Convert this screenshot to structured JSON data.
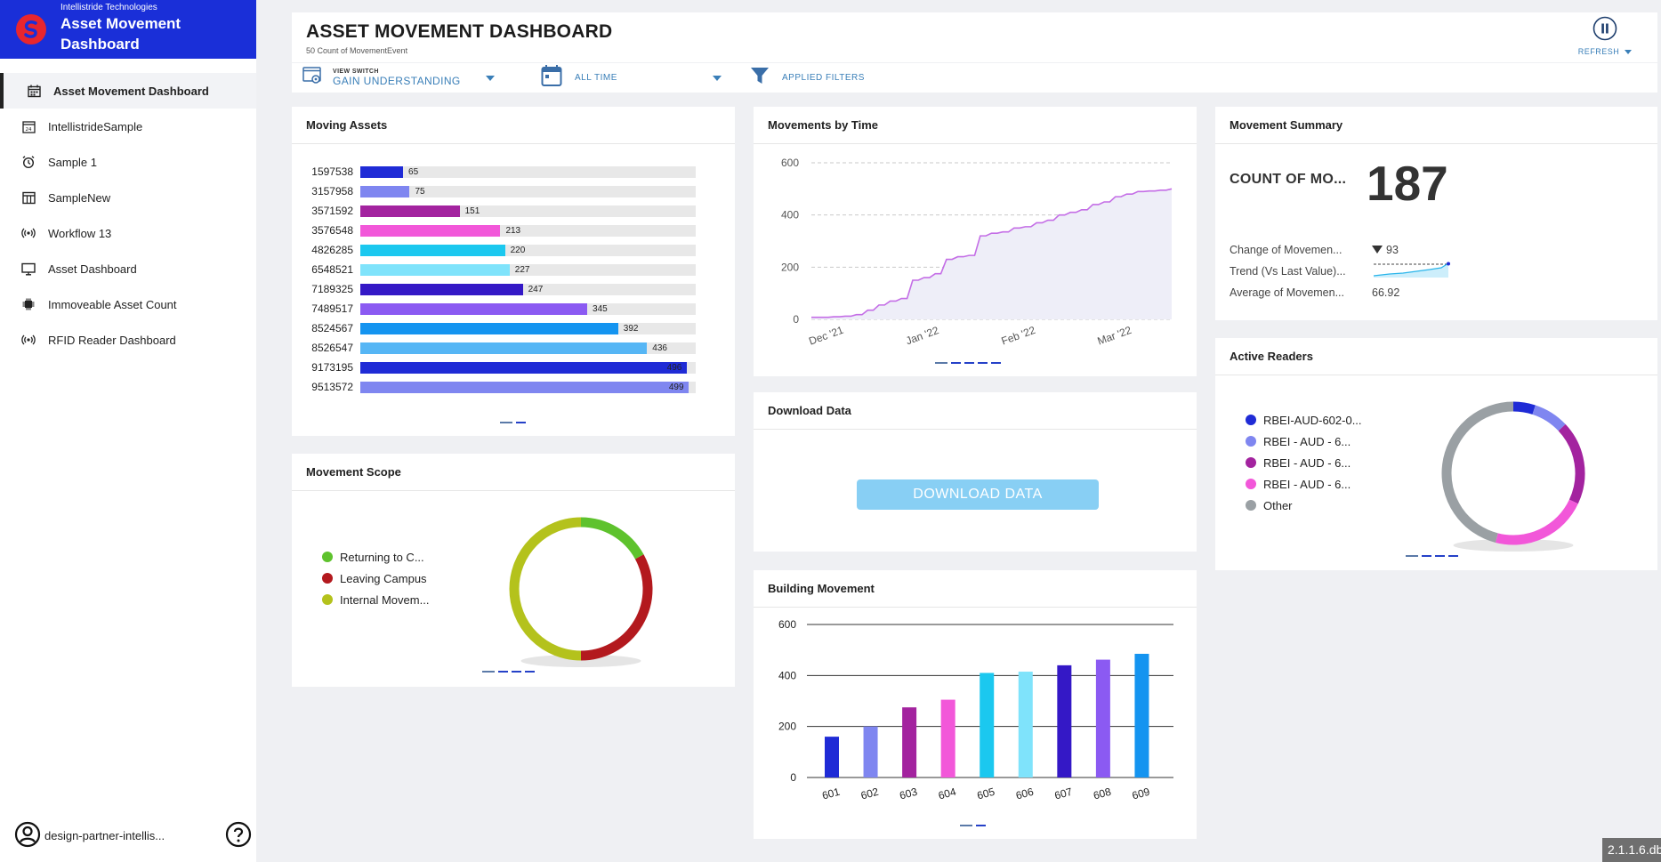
{
  "brand": {
    "company": "Intellistride Technologies",
    "app_title_line1": "Asset Movement",
    "app_title_line2": "Dashboard"
  },
  "sidebar": {
    "items": [
      {
        "label": "Asset Movement Dashboard",
        "icon": "calendar-grid-icon"
      },
      {
        "label": "IntellistrideSample",
        "icon": "calendar-icon"
      },
      {
        "label": "Sample 1",
        "icon": "alarm-clock-icon"
      },
      {
        "label": "SampleNew",
        "icon": "table-icon"
      },
      {
        "label": "Workflow 13",
        "icon": "broadcast-icon"
      },
      {
        "label": "Asset Dashboard",
        "icon": "monitor-icon"
      },
      {
        "label": "Immoveable Asset Count",
        "icon": "chip-icon"
      },
      {
        "label": "RFID Reader Dashboard",
        "icon": "broadcast-icon"
      }
    ],
    "user": "design-partner-intellis...",
    "help_icon": "question-icon"
  },
  "header": {
    "title": "ASSET MOVEMENT DASHBOARD",
    "subtitle": "50 Count of MovementEvent",
    "refresh_label": "REFRESH",
    "refresh_icon": "pause-icon"
  },
  "filters": {
    "view_switch_label": "VIEW SWITCH",
    "view_switch_value": "GAIN UNDERSTANDING",
    "time_value": "ALL TIME",
    "applied_filters": "APPLIED FILTERS"
  },
  "cards": {
    "moving_assets": "Moving Assets",
    "movements_by_time": "Movements by Time",
    "movement_summary": "Movement Summary",
    "movement_scope": "Movement Scope",
    "download_data": "Download Data",
    "active_readers": "Active Readers",
    "building_movement": "Building Movement"
  },
  "summary": {
    "count_label": "COUNT OF MO...",
    "count_value": "187",
    "change_label": "Change of Movemen...",
    "change_value": "93",
    "trend_label": "Trend (Vs Last Value)...",
    "avg_label": "Average of Movemen...",
    "avg_value": "66.92"
  },
  "download": {
    "button_label": "DOWNLOAD DATA"
  },
  "version": "2.1.1.6.db",
  "chart_data": [
    {
      "type": "bar",
      "id": "moving_assets",
      "orientation": "horizontal",
      "categories": [
        "1597538",
        "3157958",
        "3571592",
        "3576548",
        "4826285",
        "6548521",
        "7189325",
        "7489517",
        "8524567",
        "8526547",
        "9173195",
        "9513572"
      ],
      "values": [
        65,
        75,
        151,
        213,
        220,
        227,
        247,
        345,
        392,
        436,
        496,
        499
      ],
      "colors": [
        "#1f2bd6",
        "#7f86f0",
        "#a3239f",
        "#f257d9",
        "#1bc8ef",
        "#7fe3fb",
        "#3418c6",
        "#8b5af2",
        "#1494f0",
        "#56b6f5",
        "#1f2bd6",
        "#7f86f0"
      ],
      "xlim": [
        0,
        510
      ]
    },
    {
      "type": "area",
      "id": "movements_by_time",
      "x_ticks": [
        "Dec '21",
        "Jan '22",
        "Feb '22",
        "Mar '22"
      ],
      "y_ticks": [
        0,
        200,
        400,
        600
      ],
      "ylim": [
        0,
        600
      ],
      "values": [
        8,
        8,
        10,
        12,
        18,
        35,
        55,
        70,
        80,
        150,
        160,
        175,
        230,
        240,
        245,
        320,
        330,
        335,
        350,
        355,
        370,
        380,
        400,
        410,
        420,
        440,
        450,
        470,
        480,
        490,
        492,
        495,
        500
      ],
      "color": "#c46ee6",
      "grid": true
    },
    {
      "type": "pie",
      "id": "movement_scope",
      "donut": true,
      "labels": [
        "Returning to C...",
        "Leaving Campus",
        "Internal Movem..."
      ],
      "values": [
        17,
        33,
        50
      ],
      "colors": [
        "#5ec22d",
        "#b3191e",
        "#b4c21c"
      ]
    },
    {
      "type": "pie",
      "id": "active_readers",
      "donut": true,
      "labels": [
        "RBEI-AUD-602-0...",
        "RBEI - AUD - 6...",
        "RBEI - AUD - 6...",
        "RBEI - AUD - 6...",
        "Other"
      ],
      "values": [
        5,
        8,
        19,
        22,
        46
      ],
      "colors": [
        "#1f2bd6",
        "#7f86f0",
        "#a3239f",
        "#f257d9",
        "#9aa0a4"
      ]
    },
    {
      "type": "bar",
      "id": "building_movement",
      "categories": [
        "601",
        "602",
        "603",
        "604",
        "605",
        "606",
        "607",
        "608",
        "609"
      ],
      "values": [
        160,
        200,
        275,
        305,
        410,
        415,
        440,
        462,
        485
      ],
      "colors": [
        "#1f2bd6",
        "#7f86f0",
        "#a3239f",
        "#f257d9",
        "#1bc8ef",
        "#7fe3fb",
        "#3418c6",
        "#8b5af2",
        "#1494f0"
      ],
      "y_ticks": [
        0,
        200,
        400,
        600
      ],
      "ylim": [
        0,
        600
      ],
      "grid": true
    }
  ]
}
